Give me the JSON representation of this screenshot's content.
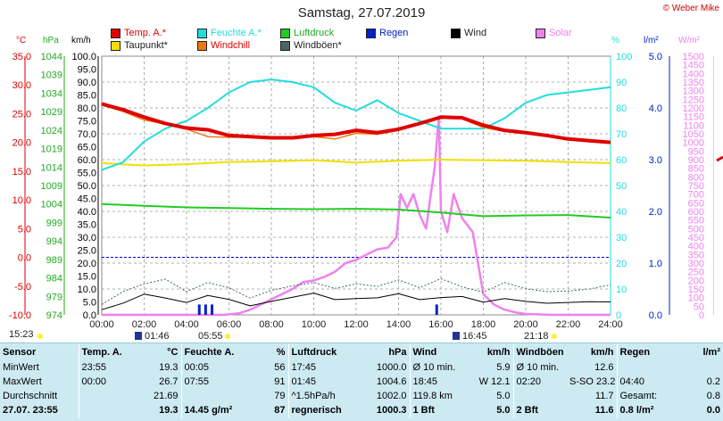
{
  "title": "Samstag, 27.07.2019",
  "copyright": "© Weber Mike",
  "units": {
    "temp": "°C",
    "hpa": "hPa",
    "kmh": "km/h",
    "pct": "%",
    "lm2": "l/m²",
    "wm2": "W/m²"
  },
  "legend": [
    {
      "label": "Temp. A.*",
      "color": "#e00000"
    },
    {
      "label": "Feuchte A.*",
      "color": "#22dddd"
    },
    {
      "label": "Luftdruck",
      "color": "#22cc22"
    },
    {
      "label": "Regen",
      "color": "#0022cc"
    },
    {
      "label": "Wind",
      "color": "#000000"
    },
    {
      "label": "Solar",
      "color": "#ee82ee"
    },
    {
      "label": "Taupunkt*",
      "color": "#f0e000"
    },
    {
      "label": "Windchill",
      "color": "#ee7711"
    },
    {
      "label": "Windböen*",
      "color": "#446666"
    }
  ],
  "colors": {
    "temp": "#e00000",
    "humidity": "#22dddd",
    "pressure": "#22cc22",
    "rain": "#0022cc",
    "wind": "#000000",
    "solar": "#ee82ee",
    "dewpoint": "#f0e000",
    "windchill": "#ee7711",
    "gust": "#446666",
    "kmh_axis": "#000000",
    "solar_axis": "#ee82ee",
    "temp_axis": "#e00000",
    "press_axis": "#22aa22",
    "rain_axis": "#0022cc"
  },
  "sun": {
    "sunrise_label": "15:23",
    "sunrise_marker": "01:46",
    "sunrise": "05:55",
    "moonset_marker": "16:45",
    "sunset": "21:18"
  },
  "chart_data": {
    "type": "line",
    "title": "Samstag, 27.07.2019",
    "x_ticks": [
      "00:00",
      "02:00",
      "04:00",
      "06:00",
      "08:00",
      "10:00",
      "12:00",
      "14:00",
      "16:00",
      "18:00",
      "20:00",
      "22:00",
      "24:00"
    ],
    "x_range_hours": [
      0,
      24
    ],
    "axes": {
      "temp": {
        "unit": "°C",
        "min": -10,
        "max": 35,
        "ticks": [
          "35.0",
          "30.0",
          "25.0",
          "20.0",
          "15.0",
          "10.0",
          "5.0",
          "0.0",
          "-5.0",
          "-10.0"
        ]
      },
      "pressure": {
        "unit": "hPa",
        "min": 974,
        "max": 1044,
        "ticks": [
          "1044",
          "1039",
          "1034",
          "1029",
          "1024",
          "1019",
          "1014",
          "1009",
          "1004",
          "999",
          "994",
          "989",
          "984",
          "979",
          "974"
        ]
      },
      "wind": {
        "unit": "km/h",
        "min": 0,
        "max": 100,
        "ticks": [
          "100.0",
          "95.0",
          "90.0",
          "85.0",
          "80.0",
          "75.0",
          "70.0",
          "65.0",
          "60.0",
          "55.0",
          "50.0",
          "45.0",
          "40.0",
          "35.0",
          "30.0",
          "25.0",
          "20.0",
          "15.0",
          "10.0",
          "5.0",
          "0.0"
        ]
      },
      "humidity": {
        "unit": "%",
        "min": 0,
        "max": 100,
        "ticks": [
          "100",
          "90",
          "80",
          "70",
          "60",
          "50",
          "40",
          "30",
          "20",
          "10",
          "0"
        ]
      },
      "rain": {
        "unit": "l/m²",
        "min": 0,
        "max": 5,
        "ticks": [
          "5.0",
          "4.0",
          "3.0",
          "2.0",
          "1.0",
          "0.0"
        ]
      },
      "solar": {
        "unit": "W/m²",
        "min": 0,
        "max": 1500,
        "ticks": [
          "1500",
          "1450",
          "1400",
          "1350",
          "1300",
          "1250",
          "1200",
          "1150",
          "1100",
          "1050",
          "1000",
          "950",
          "900",
          "850",
          "800",
          "750",
          "700",
          "650",
          "600",
          "550",
          "500",
          "450",
          "400",
          "350",
          "300",
          "250",
          "200",
          "150",
          "100",
          "50",
          "0"
        ]
      }
    },
    "grid": true,
    "series": [
      {
        "name": "Temp. A.*",
        "axis": "temp",
        "x": [
          0,
          1,
          2,
          3,
          4,
          5,
          6,
          7,
          8,
          9,
          10,
          11,
          12,
          13,
          14,
          15,
          16,
          17,
          18,
          19,
          20,
          21,
          22,
          23,
          24
        ],
        "y": [
          26.7,
          25.7,
          24.4,
          23.3,
          22.5,
          22.2,
          21.2,
          21.0,
          20.8,
          20.8,
          21.2,
          21.4,
          22.1,
          21.7,
          22.3,
          23.3,
          24.4,
          24.3,
          23.0,
          22.1,
          21.7,
          21.2,
          20.6,
          20.3,
          20.0
        ]
      },
      {
        "name": "Taupunkt*",
        "axis": "temp",
        "x": [
          0,
          2,
          4,
          6,
          8,
          10,
          12,
          14,
          16,
          18,
          20,
          22,
          24
        ],
        "y": [
          16.4,
          16.0,
          16.2,
          16.6,
          16.7,
          16.9,
          16.5,
          16.8,
          17.0,
          16.9,
          16.8,
          16.6,
          16.4
        ]
      },
      {
        "name": "Windchill",
        "axis": "temp",
        "x": [
          0,
          1,
          2,
          3,
          4,
          5,
          6,
          7,
          8,
          9,
          10,
          11,
          12,
          13,
          14,
          15,
          16,
          17,
          18,
          19,
          20,
          21,
          22,
          23,
          24
        ],
        "y": [
          26.5,
          25.4,
          23.9,
          23.2,
          22.3,
          21.0,
          20.9,
          20.9,
          20.8,
          20.6,
          21.0,
          20.6,
          21.6,
          21.4,
          22.1,
          23.2,
          24.2,
          24.1,
          22.6,
          21.9,
          21.6,
          21.2,
          20.6,
          20.3,
          20.0
        ]
      },
      {
        "name": "Feuchte A.*",
        "axis": "humidity",
        "x": [
          0,
          1,
          2,
          3,
          4,
          5,
          6,
          7,
          8,
          9,
          10,
          11,
          12,
          13,
          14,
          15,
          16,
          17,
          18,
          19,
          20,
          21,
          22,
          23,
          24
        ],
        "y": [
          56,
          59,
          67,
          72,
          75,
          80,
          86,
          90,
          91,
          90,
          88,
          82,
          79,
          83,
          78,
          75,
          72,
          72,
          72,
          76,
          82,
          85,
          86,
          87,
          88
        ]
      },
      {
        "name": "Luftdruck",
        "axis": "pressure",
        "x": [
          0,
          2,
          4,
          6,
          8,
          10,
          12,
          14,
          16,
          18,
          20,
          22,
          24
        ],
        "y": [
          1004.0,
          1003.5,
          1003.1,
          1002.9,
          1002.7,
          1002.6,
          1002.7,
          1002.5,
          1001.7,
          1000.7,
          1000.9,
          1001.0,
          1000.3
        ]
      },
      {
        "name": "Wind",
        "axis": "wind",
        "x": [
          0,
          1,
          2,
          3,
          4,
          5,
          6,
          7,
          8,
          9,
          10,
          11,
          12,
          13,
          14,
          15,
          16,
          17,
          18,
          19,
          20,
          21,
          22,
          23,
          24
        ],
        "y": [
          2.0,
          4.5,
          8.0,
          6.5,
          4.8,
          7.5,
          6.0,
          3.5,
          5.2,
          6.8,
          8.4,
          5.9,
          6.3,
          6.6,
          8.2,
          5.9,
          6.7,
          7.1,
          4.9,
          6.3,
          5.2,
          4.5,
          4.8,
          5.1,
          5.0
        ]
      },
      {
        "name": "Windböen*",
        "axis": "wind",
        "x": [
          0,
          1,
          2,
          3,
          4,
          5,
          6,
          7,
          8,
          9,
          10,
          11,
          12,
          13,
          14,
          15,
          16,
          17,
          18,
          19,
          20,
          21,
          22,
          23,
          24
        ],
        "y": [
          4.0,
          9.0,
          12.0,
          13.8,
          9.0,
          12.5,
          10.5,
          6.5,
          9.5,
          11.2,
          12.5,
          10.2,
          12.0,
          11.0,
          13.5,
          10.5,
          14.0,
          10.8,
          8.8,
          12.5,
          10.1,
          9.0,
          9.2,
          10.0,
          11.6
        ]
      },
      {
        "name": "Regen",
        "axis": "rain",
        "type": "bar",
        "x": [
          4.6,
          4.9,
          5.2,
          15.8
        ],
        "y": [
          0.2,
          0.2,
          0.2,
          0.2
        ]
      },
      {
        "name": "Solar",
        "axis": "solar",
        "x": [
          0,
          5.8,
          6.5,
          7,
          7.5,
          8,
          8.5,
          9,
          9.5,
          10,
          10.5,
          11,
          11.5,
          12,
          12.5,
          13,
          13.5,
          13.9,
          14.1,
          14.4,
          14.7,
          15,
          15.3,
          15.5,
          15.7,
          15.9,
          16.0,
          16.3,
          16.6,
          17,
          17.5,
          18,
          18.5,
          19,
          19.5,
          20,
          21.3,
          24
        ],
        "y": [
          0,
          0,
          10,
          30,
          60,
          90,
          120,
          150,
          190,
          200,
          220,
          250,
          300,
          320,
          350,
          380,
          390,
          450,
          700,
          620,
          700,
          580,
          500,
          680,
          850,
          1150,
          600,
          480,
          700,
          560,
          480,
          120,
          60,
          30,
          15,
          5,
          0,
          0
        ]
      }
    ],
    "rain_scale_ref": "l/m²"
  },
  "stats": {
    "headers": {
      "sensor": "Sensor",
      "temp": "Temp. A.",
      "temp_unit": "°C",
      "hum": "Feuchte A.",
      "hum_unit": "%",
      "press": "Luftdruck",
      "press_unit": "hPa",
      "wind": "Wind",
      "wind_unit": "km/h",
      "gust": "Windböen",
      "gust_unit": "km/h",
      "rain": "Regen",
      "rain_unit": "l/m²"
    },
    "rows": [
      {
        "label": "MinWert",
        "temp_t": "23:55",
        "temp_v": "19.3",
        "hum_t": "00:05",
        "hum_v": "56",
        "press_t": "17:45",
        "press_v": "1000.0",
        "wind_t": "Ø 10 min.",
        "wind_v": "5.9",
        "gust_t": "Ø 10 min.",
        "gust_v": "12.6",
        "rain_t": "",
        "rain_v": ""
      },
      {
        "label": "MaxWert",
        "temp_t": "00:00",
        "temp_v": "26.7",
        "hum_t": "07:55",
        "hum_v": "91",
        "press_t": "01:45",
        "press_v": "1004.6",
        "wind_t": "18:45",
        "wind_v": "W 12.1",
        "gust_t": "02:20",
        "gust_v": "S-SO 23.2",
        "rain_t": "04:40",
        "rain_v": "0.2"
      },
      {
        "label": "Durchschnitt",
        "temp_t": "",
        "temp_v": "21.69",
        "hum_t": "",
        "hum_v": "79",
        "press_t": "^1.5hPa/h",
        "press_v": "1002.0",
        "wind_t": "119.8 km",
        "wind_v": "5.0",
        "gust_t": "",
        "gust_v": "11.7",
        "rain_t": "Gesamt:",
        "rain_v": "0.8"
      },
      {
        "label": "27.07. 23:55",
        "temp_t": "",
        "temp_v": "19.3",
        "hum_t": "14.45 g/m²",
        "hum_v": "87",
        "press_t": "regnerisch",
        "press_v": "1000.3",
        "wind_t": "1 Bft",
        "wind_v": "5.0",
        "gust_t": "2 Bft",
        "gust_v": "11.6",
        "rain_t": "0.8 l/m²",
        "rain_v": "0.0"
      }
    ]
  }
}
